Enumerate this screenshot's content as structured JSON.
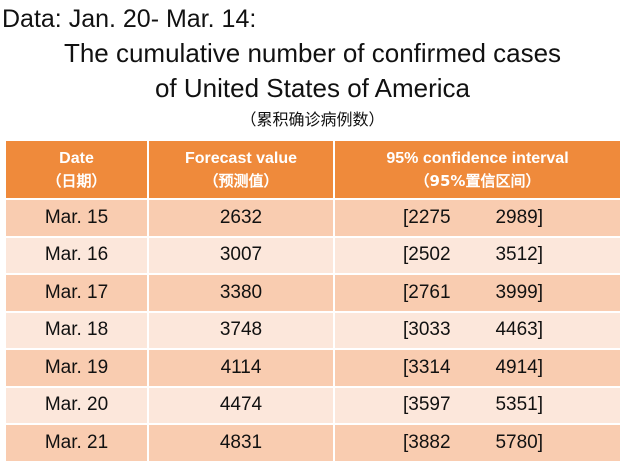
{
  "data_range": "Data: Jan. 20- Mar. 14:",
  "title_line1": "The cumulative number of confirmed cases",
  "title_line2": "of United States of America",
  "subtitle": "（累积确诊病例数）",
  "columns": [
    {
      "label": "Date",
      "sub": "（日期）"
    },
    {
      "label": "Forecast value",
      "sub": "（预测值）"
    },
    {
      "label": "95% confidence interval",
      "sub": "（95%置信区间）"
    }
  ],
  "rows": [
    {
      "date": "Mar. 15",
      "forecast": "2632",
      "ci_low": "[2275",
      "ci_high": "2989]"
    },
    {
      "date": "Mar. 16",
      "forecast": "3007",
      "ci_low": "[2502",
      "ci_high": "3512]"
    },
    {
      "date": "Mar. 17",
      "forecast": "3380",
      "ci_low": "[2761",
      "ci_high": "3999]"
    },
    {
      "date": "Mar. 18",
      "forecast": "3748",
      "ci_low": "[3033",
      "ci_high": "4463]"
    },
    {
      "date": "Mar. 19",
      "forecast": "4114",
      "ci_low": "[3314",
      "ci_high": "4914]"
    },
    {
      "date": "Mar. 20",
      "forecast": "4474",
      "ci_low": "[3597",
      "ci_high": "5351]"
    },
    {
      "date": "Mar. 21",
      "forecast": "4831",
      "ci_low": "[3882",
      "ci_high": "5780]"
    }
  ],
  "colors": {
    "header_bg": "#ef8a3b",
    "row_dark": "#f9ccb0",
    "row_light": "#fce7db",
    "header_text": "#ffffff"
  }
}
